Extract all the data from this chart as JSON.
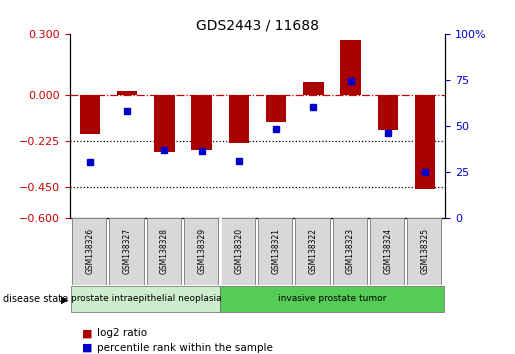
{
  "title": "GDS2443 / 11688",
  "samples": [
    "GSM138326",
    "GSM138327",
    "GSM138328",
    "GSM138329",
    "GSM138320",
    "GSM138321",
    "GSM138322",
    "GSM138323",
    "GSM138324",
    "GSM138325"
  ],
  "log2_ratio": [
    -0.19,
    0.02,
    -0.28,
    -0.27,
    -0.235,
    -0.13,
    0.065,
    0.27,
    -0.17,
    -0.46
  ],
  "pct_rank": [
    30,
    58,
    37,
    36,
    31,
    48,
    60,
    74,
    46,
    25
  ],
  "ylim_left": [
    -0.6,
    0.3
  ],
  "ylim_right": [
    0,
    100
  ],
  "yticks_left": [
    0.3,
    0,
    -0.225,
    -0.45,
    -0.6
  ],
  "yticks_right": [
    100,
    75,
    50,
    25,
    0
  ],
  "hline_dotdash": 0,
  "hline_dot1": -0.225,
  "hline_dot2": -0.45,
  "disease_groups": [
    {
      "label": "prostate intraepithelial neoplasia",
      "start": 0,
      "end": 4,
      "color": "#cceecc"
    },
    {
      "label": "invasive prostate tumor",
      "start": 4,
      "end": 10,
      "color": "#55cc55"
    }
  ],
  "bar_color": "#aa0000",
  "dot_color": "#0000cc",
  "left_axis_color": "#cc0000",
  "right_axis_color": "#0000cc",
  "legend_items": [
    "log2 ratio",
    "percentile rank within the sample"
  ],
  "disease_state_label": "disease state",
  "group_separator": 4,
  "bar_width": 0.55
}
